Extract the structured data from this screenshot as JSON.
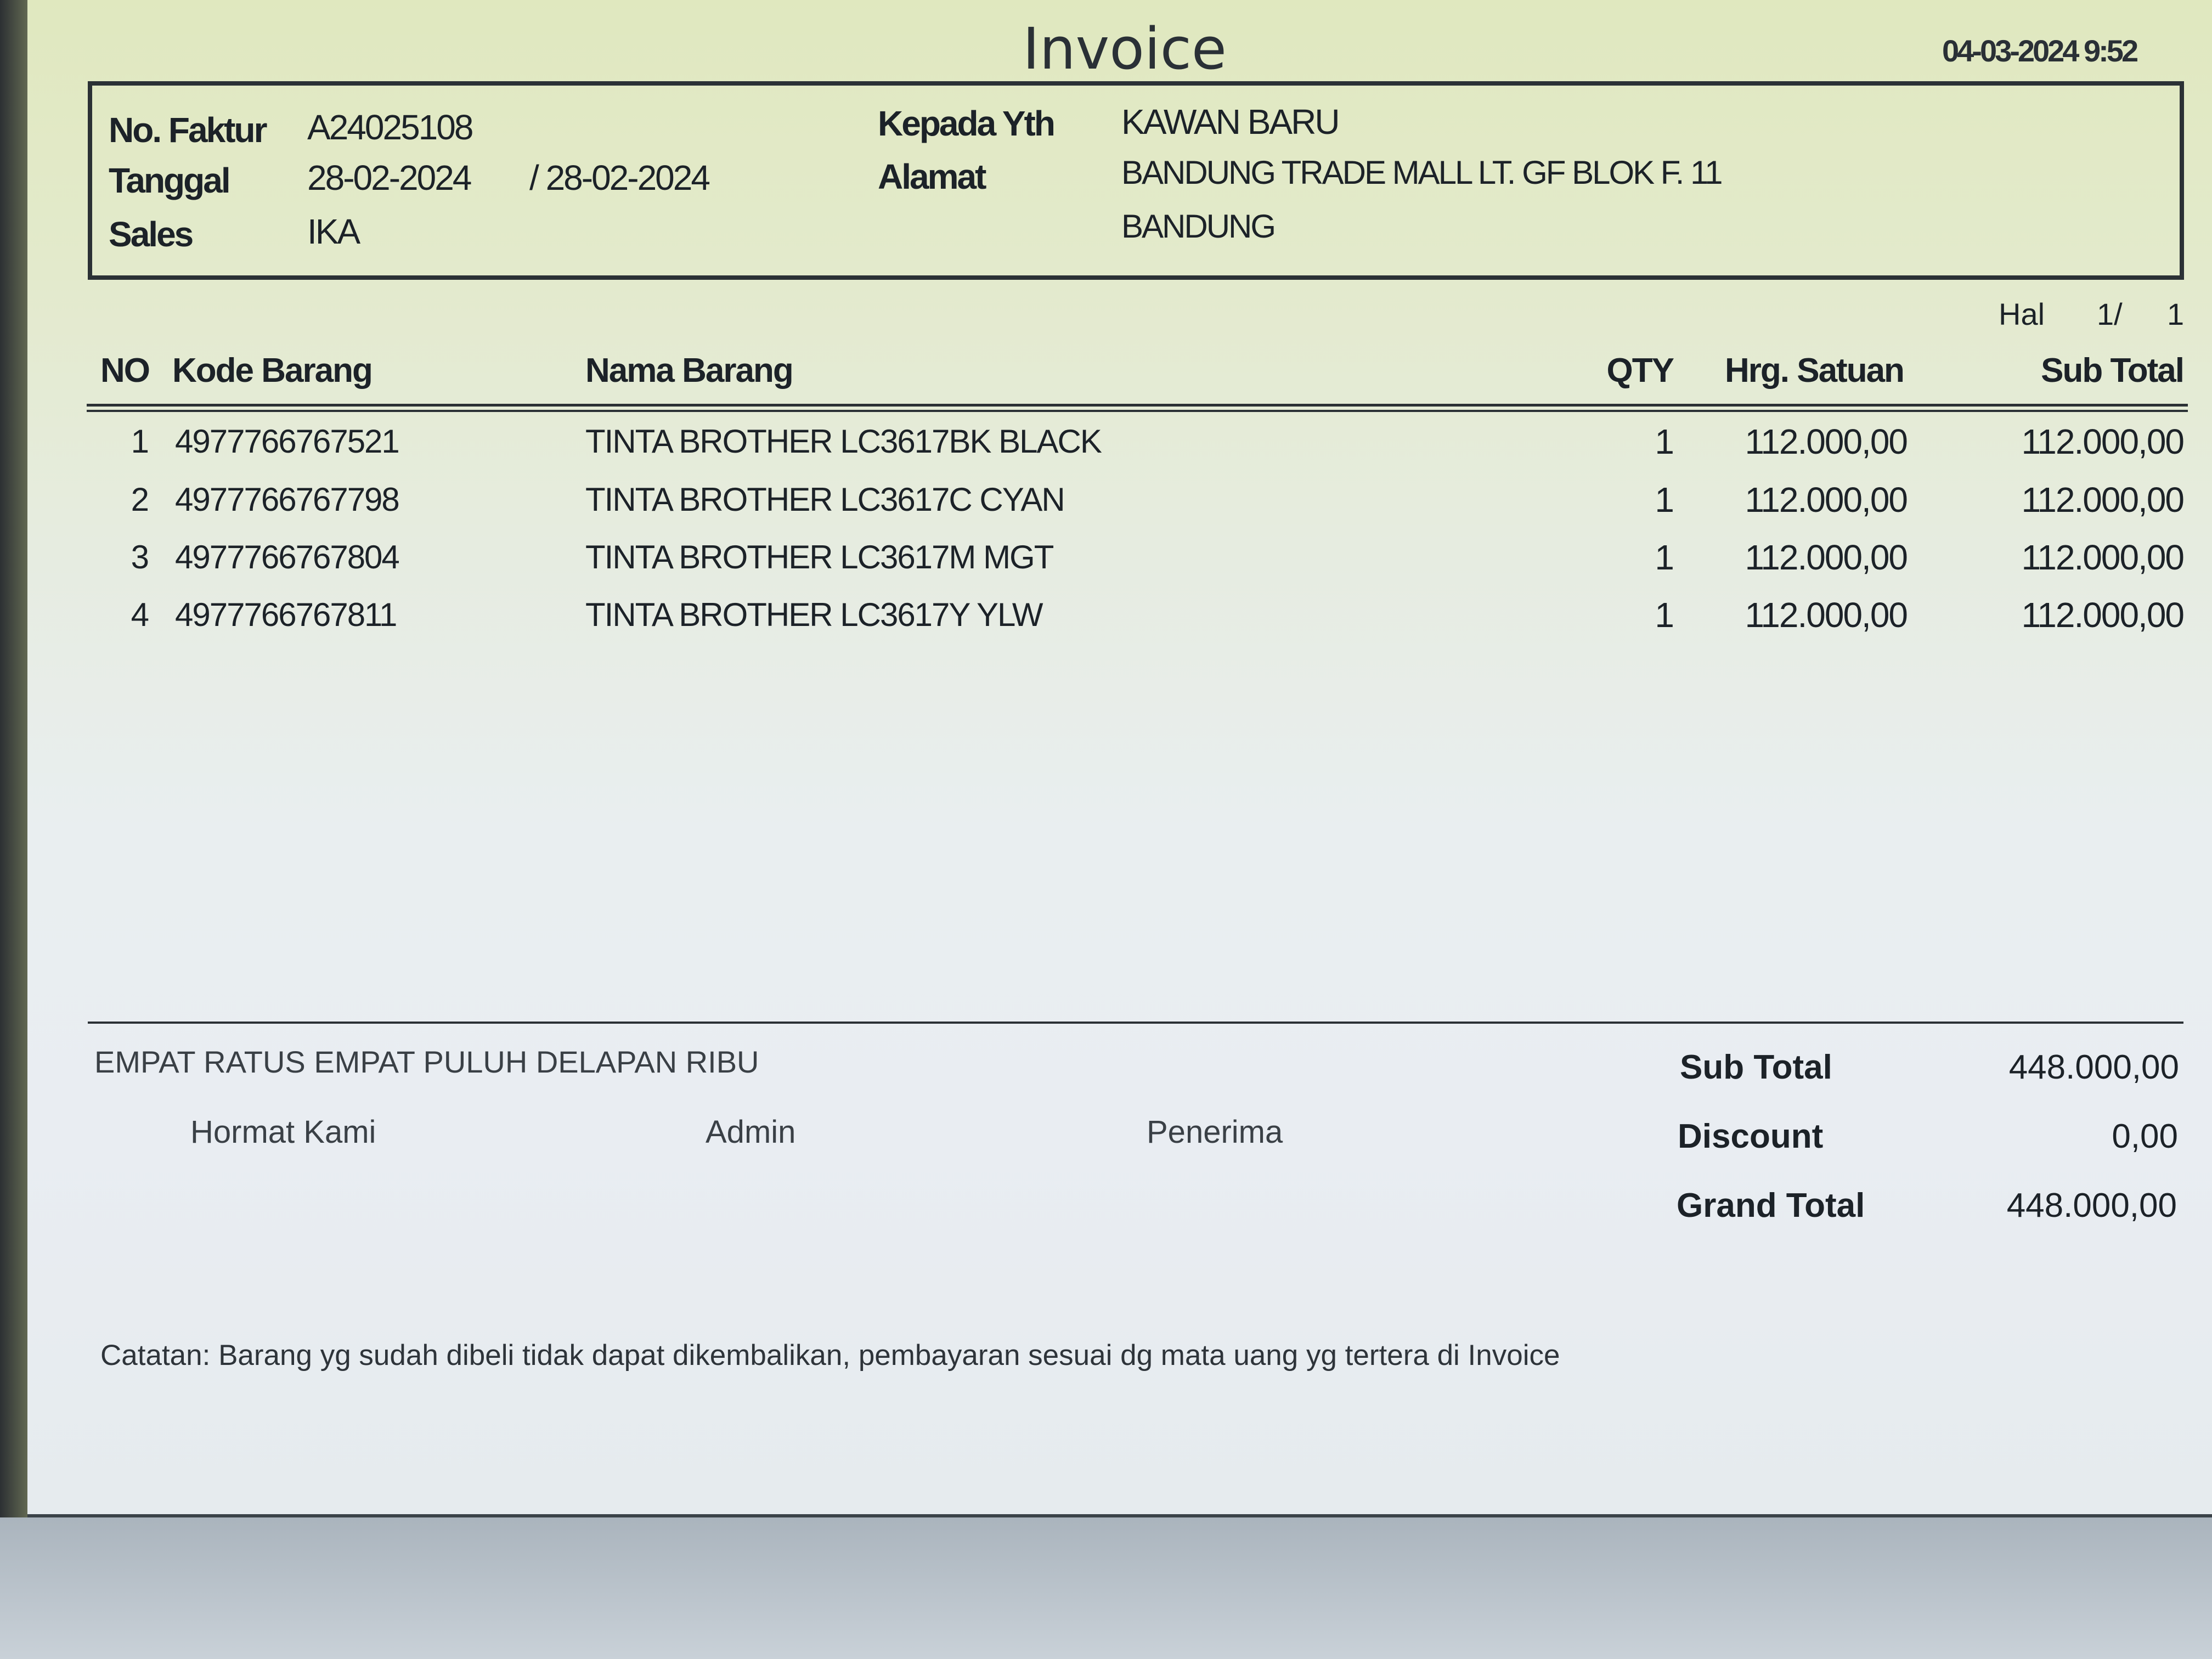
{
  "title": "Invoice",
  "print_datetime": "04-03-2024 9:52",
  "header": {
    "no_faktur_label": "No. Faktur",
    "no_faktur": "A24025108",
    "tanggal_label": "Tanggal",
    "tanggal": "28-02-2024",
    "tanggal2": "/ 28-02-2024",
    "sales_label": "Sales",
    "sales": "IKA",
    "kepada_label": "Kepada Yth",
    "kepada": "KAWAN BARU",
    "alamat_label": "Alamat",
    "alamat1": "BANDUNG TRADE MALL LT. GF BLOK F. 11",
    "alamat2": "BANDUNG"
  },
  "page": {
    "label": "Hal",
    "current": "1/",
    "total": "1"
  },
  "table": {
    "columns": [
      "NO",
      "Kode Barang",
      "Nama Barang",
      "QTY",
      "Hrg. Satuan",
      "Sub Total"
    ],
    "rows": [
      {
        "no": "1",
        "kode": "4977766767521",
        "nama": "TINTA BROTHER LC3617BK BLACK",
        "qty": "1",
        "harga": "112.000,00",
        "subtotal": "112.000,00"
      },
      {
        "no": "2",
        "kode": "4977766767798",
        "nama": "TINTA BROTHER LC3617C CYAN",
        "qty": "1",
        "harga": "112.000,00",
        "subtotal": "112.000,00"
      },
      {
        "no": "3",
        "kode": "4977766767804",
        "nama": "TINTA BROTHER LC3617M MGT",
        "qty": "1",
        "harga": "112.000,00",
        "subtotal": "112.000,00"
      },
      {
        "no": "4",
        "kode": "4977766767811",
        "nama": "TINTA BROTHER LC3617Y YLW",
        "qty": "1",
        "harga": "112.000,00",
        "subtotal": "112.000,00"
      }
    ]
  },
  "footer": {
    "terbilang": "EMPAT RATUS EMPAT PULUH DELAPAN RIBU",
    "signatures": [
      "Hormat Kami",
      "Admin",
      "Penerima"
    ],
    "subtotal_label": "Sub Total",
    "subtotal": "448.000,00",
    "discount_label": "Discount",
    "discount": "0,00",
    "grandtotal_label": "Grand Total",
    "grandtotal": "448.000,00",
    "catatan": "Catatan: Barang yg sudah dibeli tidak dapat dikembalikan, pembayaran sesuai dg mata uang yg tertera di Invoice"
  }
}
